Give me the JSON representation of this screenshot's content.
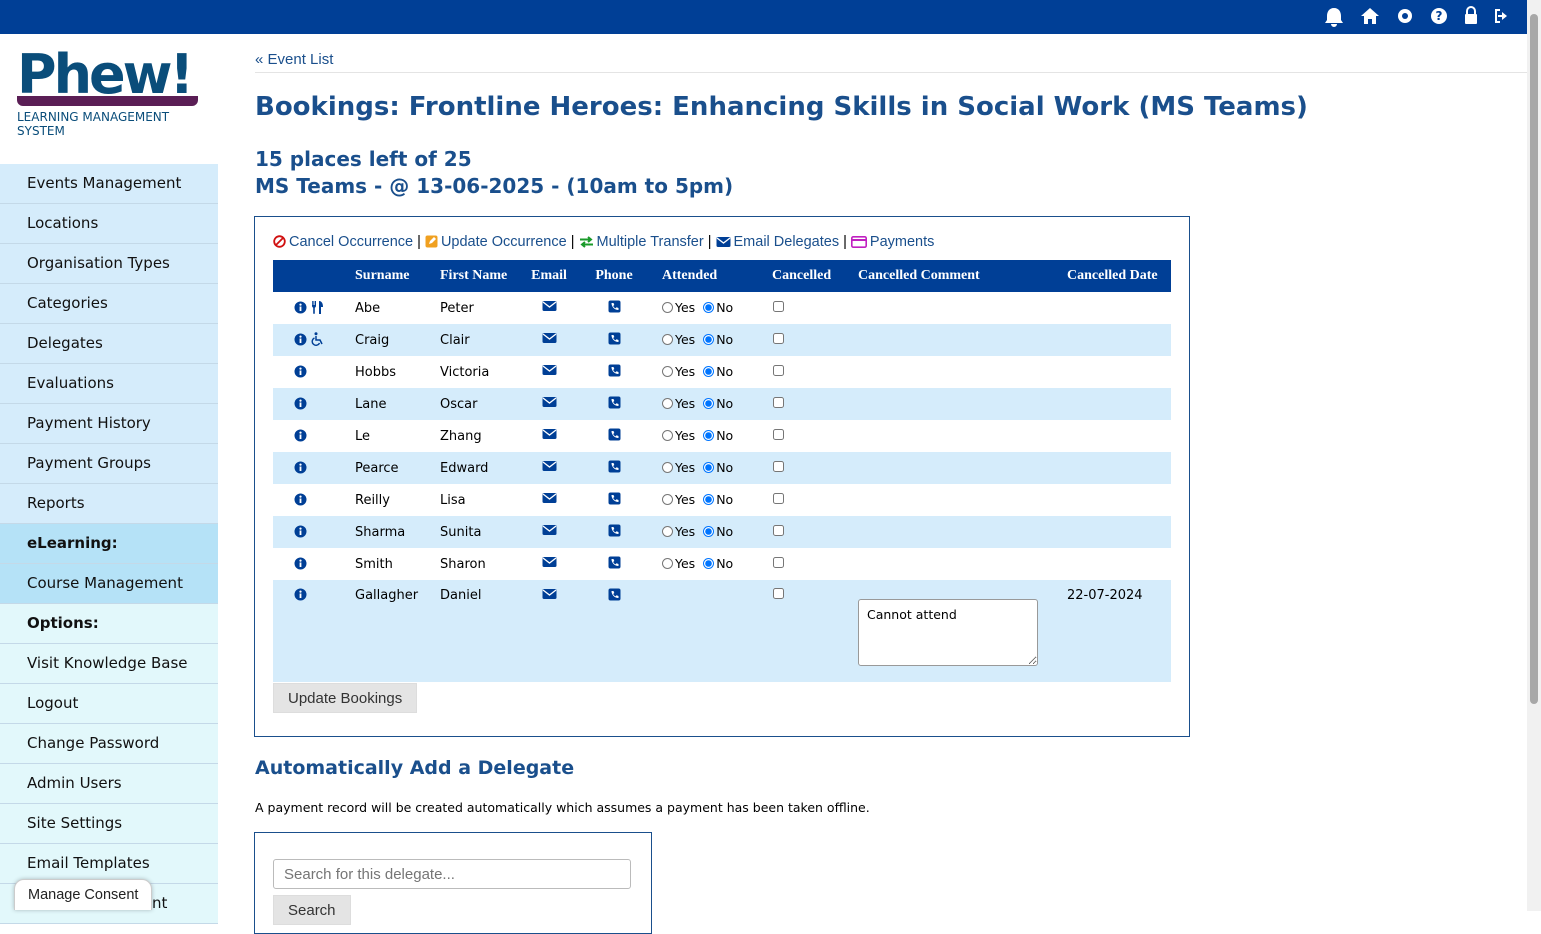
{
  "logo": {
    "title": "Phew!",
    "subtitle": "LEARNING MANAGEMENT SYSTEM"
  },
  "sidebar": {
    "items": [
      "Events Management",
      "Locations",
      "Organisation Types",
      "Categories",
      "Delegates",
      "Evaluations",
      "Payment History",
      "Payment Groups",
      "Reports"
    ],
    "elearning_header": "eLearning:",
    "elearning_items": [
      "Course Management"
    ],
    "options_header": "Options:",
    "options_items": [
      "Visit Knowledge Base",
      "Logout",
      "Change Password",
      "Admin Users",
      "Site Settings",
      "Email Templates",
      "nt"
    ]
  },
  "back_link": "« Event List",
  "title": "Bookings: Frontline Heroes: Enhancing Skills in Social Work (MS Teams)",
  "places": "15 places left of 25",
  "venue": "MS Teams - @ 13-06-2025 - (10am to 5pm)",
  "actions": [
    "Cancel Occurrence",
    "Update Occurrence",
    "Multiple Transfer",
    "Email Delegates",
    "Payments"
  ],
  "table": {
    "headers": [
      "Surname",
      "First Name",
      "Email",
      "Phone",
      "Attended",
      "Cancelled",
      "Cancelled Comment",
      "Cancelled Date"
    ],
    "options": [
      "Yes",
      "No"
    ],
    "rows": [
      {
        "surname": "Abe",
        "first_name": "Peter"
      },
      {
        "surname": "Craig",
        "first_name": "Clair"
      },
      {
        "surname": "Hobbs",
        "first_name": "Victoria"
      },
      {
        "surname": "Lane",
        "first_name": "Oscar"
      },
      {
        "surname": "Le",
        "first_name": "Zhang"
      },
      {
        "surname": "Pearce",
        "first_name": "Edward"
      },
      {
        "surname": "Reilly",
        "first_name": "Lisa"
      },
      {
        "surname": "Sharma",
        "first_name": "Sunita"
      },
      {
        "surname": "Smith",
        "first_name": "Sharon"
      },
      {
        "surname": "Gallagher",
        "first_name": "Daniel",
        "comment": "Cannot attend",
        "date": "22-07-2024"
      }
    ]
  },
  "update_button": "Update Bookings",
  "add_title": "Automatically Add a Delegate",
  "add_note": "A payment record will be created automatically which assumes a payment has been taken offline.",
  "search_placeholder": "Search for this delegate...",
  "search_button": "Search",
  "consent_button": "Manage Consent"
}
